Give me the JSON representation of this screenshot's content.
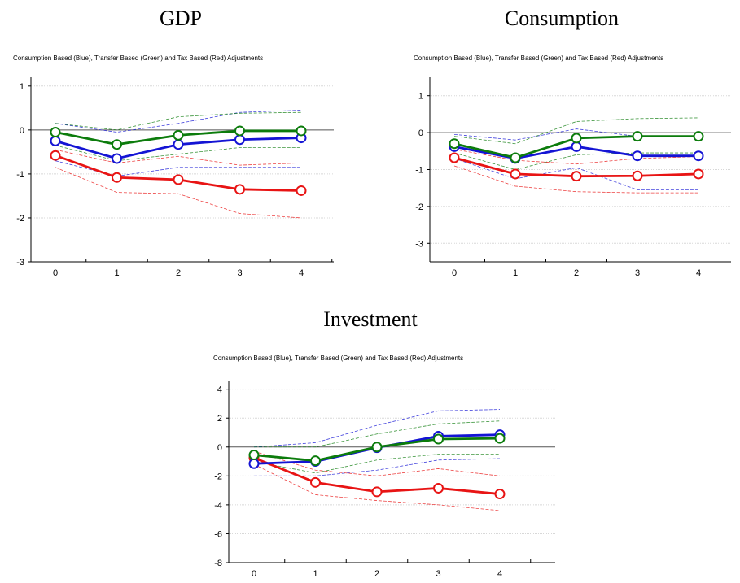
{
  "chart_data": [
    {
      "type": "line",
      "title": "GDP",
      "subtitle": "Consumption Based (Blue), Transfer Based (Green) and Tax Based (Red) Adjustments",
      "x": [
        0,
        1,
        2,
        3,
        4
      ],
      "xtick_labels": [
        "0",
        "1",
        "2",
        "3",
        "4"
      ],
      "ylim": [
        -3,
        1.2
      ],
      "yticks": [
        1,
        0,
        -1,
        -2,
        -3
      ],
      "ytick_labels": [
        "1",
        "0",
        "-1",
        "-2",
        "-3"
      ],
      "grid": true,
      "series": [
        {
          "color": "blue",
          "values": [
            -0.25,
            -0.65,
            -0.33,
            -0.22,
            -0.18
          ],
          "band_upper": [
            0.15,
            -0.05,
            0.15,
            0.4,
            0.45
          ],
          "band_lower": [
            -0.7,
            -1.05,
            -0.85,
            -0.85,
            -0.85
          ]
        },
        {
          "color": "green",
          "values": [
            -0.05,
            -0.33,
            -0.12,
            -0.02,
            -0.02
          ],
          "band_upper": [
            0.15,
            0.0,
            0.3,
            0.38,
            0.4
          ],
          "band_lower": [
            -0.35,
            -0.7,
            -0.55,
            -0.4,
            -0.4
          ]
        },
        {
          "color": "red",
          "values": [
            -0.58,
            -1.08,
            -1.13,
            -1.35,
            -1.38
          ],
          "band_upper": [
            -0.45,
            -0.75,
            -0.6,
            -0.8,
            -0.75
          ],
          "band_lower": [
            -0.85,
            -1.42,
            -1.45,
            -1.9,
            -2.0
          ]
        }
      ]
    },
    {
      "type": "line",
      "title": "Consumption",
      "subtitle": "Consumption Based (Blue), Transfer Based (Green) and Tax Based (Red) Adjustments",
      "x": [
        0,
        1,
        2,
        3,
        4
      ],
      "xtick_labels": [
        "0",
        "1",
        "2",
        "3",
        "4"
      ],
      "ylim": [
        -3.5,
        1.5
      ],
      "yticks": [
        1,
        0,
        -1,
        -2,
        -3
      ],
      "ytick_labels": [
        "1",
        "0",
        "-1",
        "-2",
        "-3"
      ],
      "grid": true,
      "series": [
        {
          "color": "blue",
          "values": [
            -0.38,
            -0.7,
            -0.38,
            -0.63,
            -0.63
          ],
          "band_upper": [
            -0.05,
            -0.2,
            0.1,
            -0.1,
            -0.1
          ],
          "band_lower": [
            -0.7,
            -1.25,
            -0.95,
            -1.55,
            -1.55
          ]
        },
        {
          "color": "green",
          "values": [
            -0.3,
            -0.68,
            -0.15,
            -0.1,
            -0.1
          ],
          "band_upper": [
            -0.1,
            -0.3,
            0.3,
            0.38,
            0.4
          ],
          "band_lower": [
            -0.55,
            -1.0,
            -0.6,
            -0.55,
            -0.55
          ]
        },
        {
          "color": "red",
          "values": [
            -0.68,
            -1.12,
            -1.18,
            -1.17,
            -1.12
          ],
          "band_upper": [
            -0.45,
            -0.75,
            -0.85,
            -0.7,
            -0.65
          ],
          "band_lower": [
            -0.9,
            -1.45,
            -1.6,
            -1.63,
            -1.63
          ]
        }
      ]
    },
    {
      "type": "line",
      "title": "Investment",
      "subtitle": "Consumption Based (Blue), Transfer Based (Green) and Tax Based (Red) Adjustments",
      "x": [
        0,
        1,
        2,
        3,
        4
      ],
      "xtick_labels": [
        "0",
        "1",
        "2",
        "3",
        "4"
      ],
      "ylim": [
        -8,
        4.6
      ],
      "yticks": [
        4,
        2,
        0,
        -2,
        -4,
        -6,
        -8
      ],
      "ytick_labels": [
        "4",
        "2",
        "0",
        "-2",
        "-4",
        "-6",
        "-8"
      ],
      "grid": true,
      "series": [
        {
          "color": "blue",
          "values": [
            -1.15,
            -1.0,
            -0.05,
            0.75,
            0.85
          ],
          "band_upper": [
            0.0,
            0.3,
            1.5,
            2.5,
            2.6
          ],
          "band_lower": [
            -2.0,
            -2.0,
            -1.6,
            -0.9,
            -0.8
          ]
        },
        {
          "color": "green",
          "values": [
            -0.55,
            -0.95,
            0.0,
            0.55,
            0.6
          ],
          "band_upper": [
            0.0,
            0.0,
            0.9,
            1.6,
            1.8
          ],
          "band_lower": [
            -1.0,
            -1.8,
            -0.9,
            -0.5,
            -0.5
          ]
        },
        {
          "color": "red",
          "values": [
            -0.75,
            -2.45,
            -3.1,
            -2.85,
            -3.25
          ],
          "band_upper": [
            -0.3,
            -1.6,
            -2.0,
            -1.5,
            -2.0
          ],
          "band_lower": [
            -1.2,
            -3.3,
            -3.7,
            -4.0,
            -4.4
          ]
        }
      ]
    }
  ],
  "colors": {
    "blue": "#1414d4",
    "green": "#0c7c0c",
    "red": "#e81414",
    "axis": "#000000",
    "grid": "#d8d8d8"
  }
}
